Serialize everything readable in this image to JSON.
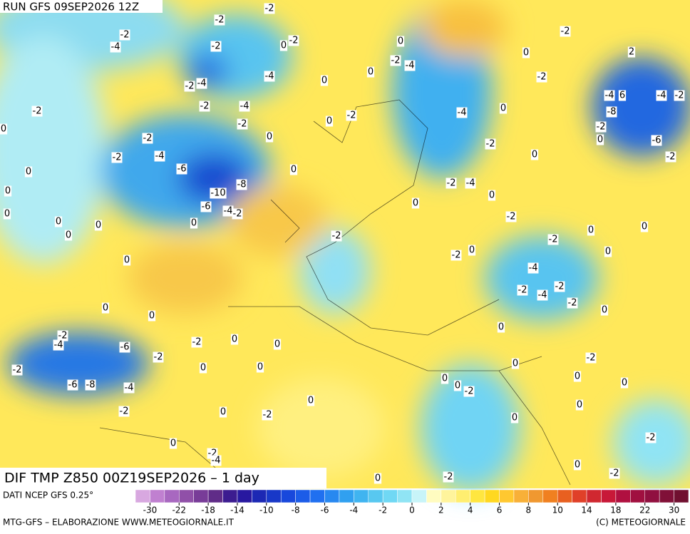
{
  "header": {
    "run": "RUN GFS 09SEP2026 12Z"
  },
  "map": {
    "title": "DIF TMP Z850 00Z19SEP2026 – 1 day",
    "contour_labels": [
      "-2",
      "-2",
      "-2",
      "-4",
      "-2",
      "0",
      "-2",
      "0",
      "-2",
      "-4",
      "0",
      "-2",
      "0",
      "2",
      "-4",
      "0",
      "-2",
      "-4",
      "-2",
      "-2",
      "-4",
      "-2",
      "-2",
      "-2",
      "0",
      "-4",
      "0",
      "-4",
      "6",
      "-4",
      "-2",
      "-8",
      "0",
      "-2",
      "0",
      "-2",
      "-6",
      "-2",
      "0",
      "-4",
      "-2",
      "0",
      "-2",
      "-6",
      "0",
      "0",
      "-8",
      "-2",
      "-4",
      "-10",
      "0",
      "0",
      "-6",
      "-4",
      "-2",
      "0",
      "0",
      "-2",
      "0",
      "0",
      "0",
      "0",
      "-2",
      "0",
      "0",
      "-2",
      "0",
      "-2",
      "0",
      "0",
      "-4",
      "-2",
      "-4",
      "-2",
      "-2",
      "0",
      "0",
      "0",
      "0",
      "-2",
      "-4",
      "-2",
      "0",
      "0",
      "-6",
      "-2",
      "-2",
      "-2",
      "0",
      "0",
      "0",
      "0",
      "0",
      "0",
      "-6",
      "-8",
      "-4",
      "0",
      "-2",
      "0",
      "0",
      "-2",
      "0",
      "-2",
      "0",
      "-2",
      "0",
      "-2",
      "-4",
      "0",
      "-2",
      "0",
      "-2"
    ]
  },
  "colorbar": {
    "source": "DATI NCEP GFS 0.25°",
    "ticks": [
      -30,
      -22,
      -18,
      -14,
      -10,
      -8,
      -6,
      -4,
      -2,
      0,
      2,
      4,
      6,
      8,
      10,
      14,
      18,
      22,
      30
    ],
    "colors": [
      "#d8a8e0",
      "#c080d0",
      "#a868c0",
      "#9050a8",
      "#783c98",
      "#602c88",
      "#3c1c90",
      "#2818a0",
      "#1c28b4",
      "#1838c8",
      "#1848dc",
      "#1c5ce8",
      "#2070f0",
      "#2888f0",
      "#30a0f0",
      "#40b4f0",
      "#58c8f0",
      "#70d8f4",
      "#90e4f4",
      "#c8f4f8",
      "#fffcc0",
      "#fff49c",
      "#ffee70",
      "#ffe640",
      "#ffd820",
      "#ffc830",
      "#f8b038",
      "#f09830",
      "#f08020",
      "#e86020",
      "#e04028",
      "#d02830",
      "#c81838",
      "#b01040",
      "#a01040",
      "#901040",
      "#801038",
      "#701030"
    ]
  },
  "footer": {
    "left": "MTG-GFS – ELABORAZIONE WWW.METEOGIORNALE.IT",
    "right": "(C) METEOGIORNALE"
  }
}
